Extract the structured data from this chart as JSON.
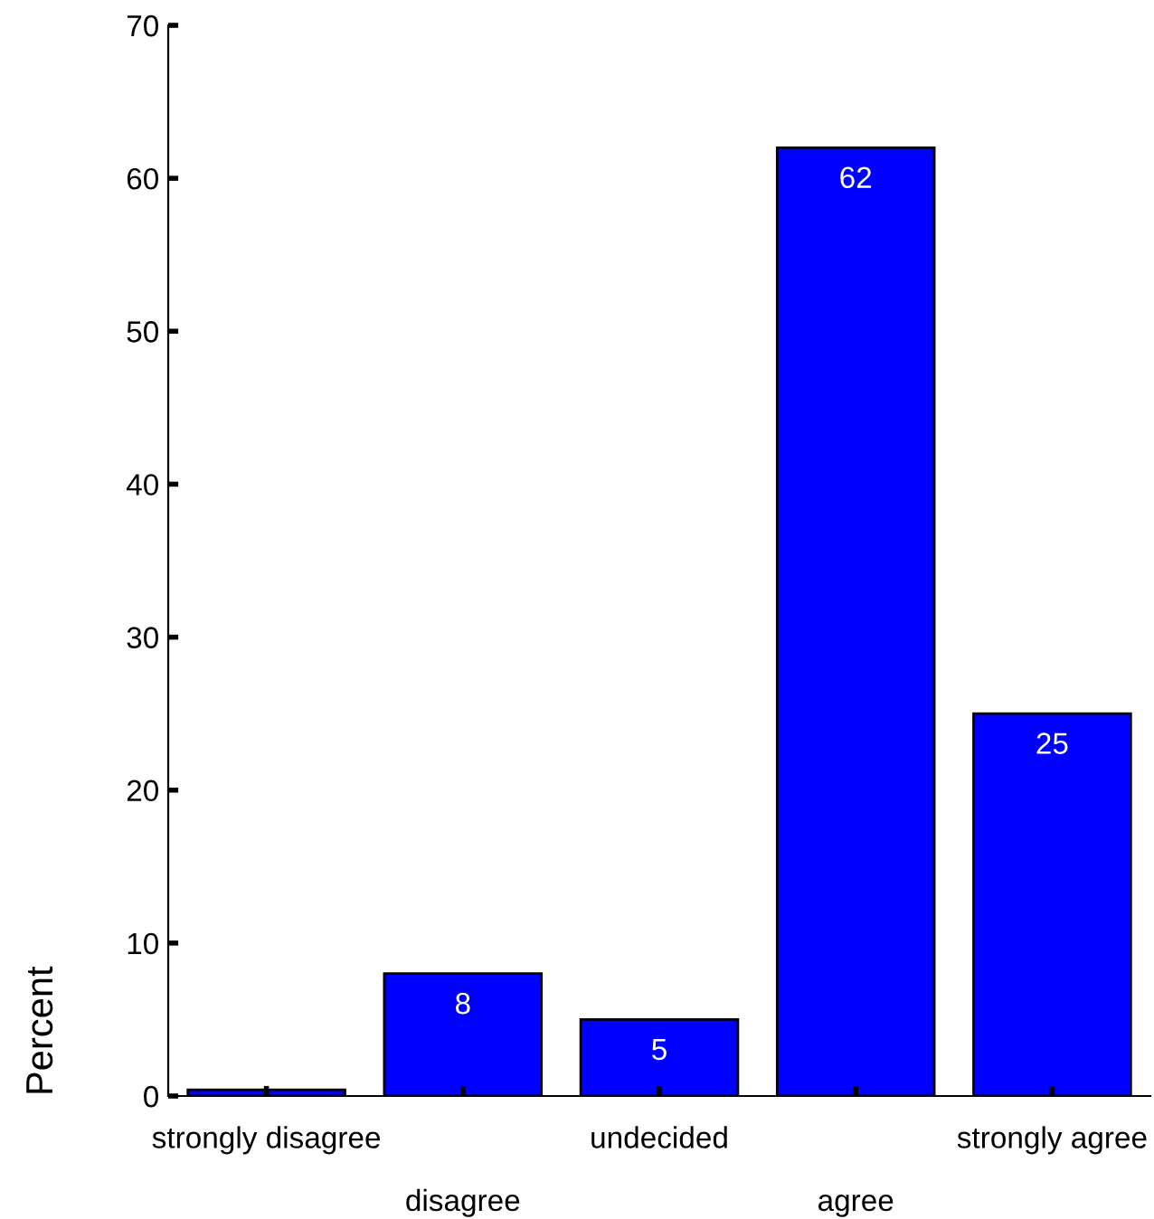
{
  "chart_data": {
    "type": "bar",
    "ylabel": "Percent",
    "categories": [
      "strongly disagree",
      "disagree",
      "undecided",
      "agree",
      "strongly agree"
    ],
    "values": [
      0.4,
      8,
      5,
      62,
      25
    ],
    "value_labels": [
      null,
      "8",
      "5",
      "62",
      "25"
    ],
    "color": "#0000ff",
    "ylim": [
      0,
      70
    ],
    "yticks": [
      0,
      10,
      20,
      30,
      40,
      50,
      60,
      70
    ],
    "grid": false
  }
}
